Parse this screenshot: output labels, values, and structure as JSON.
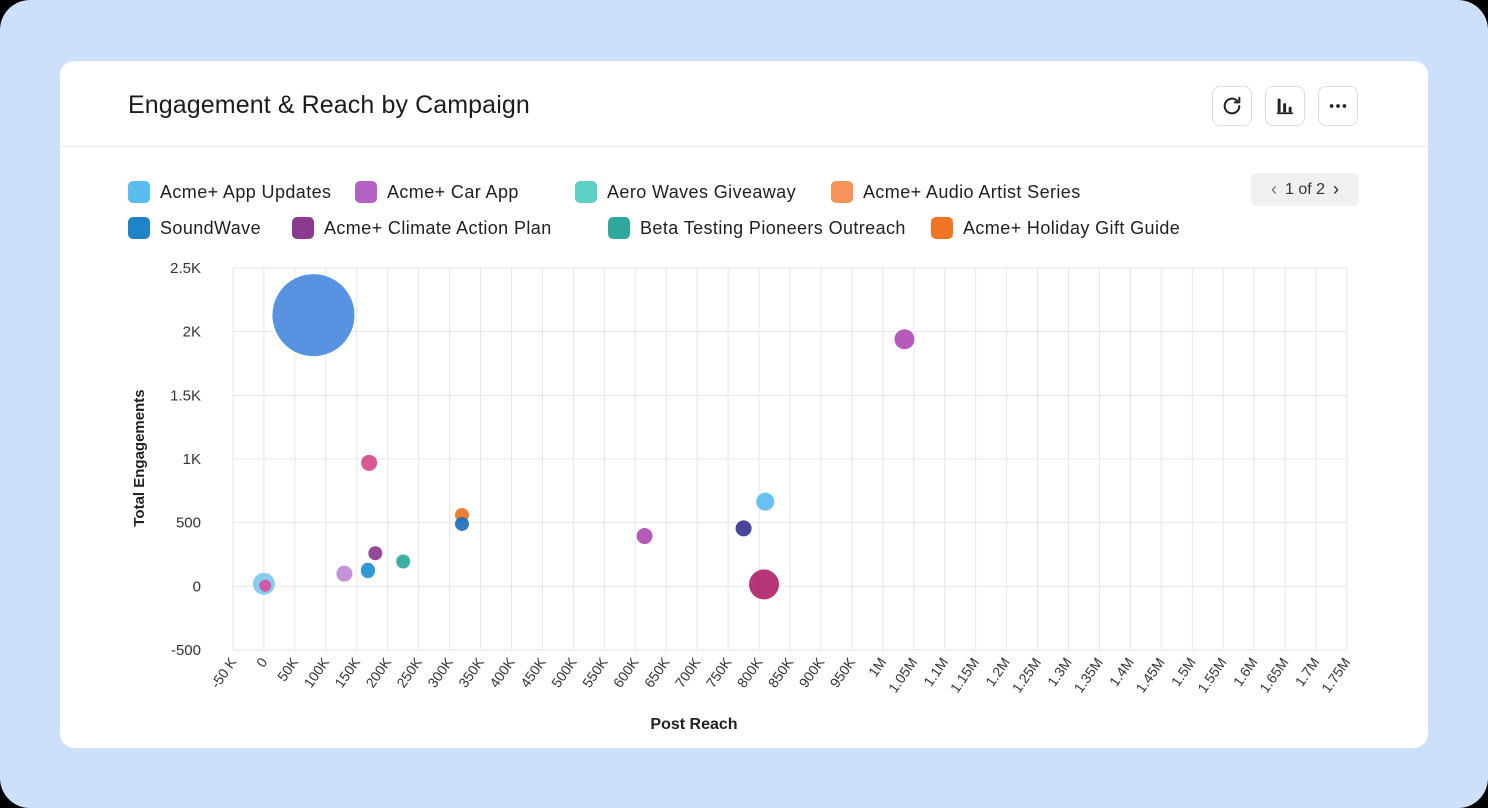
{
  "card": {
    "title": "Engagement & Reach by Campaign",
    "toolbar": {
      "refresh_icon": "refresh-icon",
      "chart_type_icon": "bar-chart-icon",
      "more_icon": "more-horizontal-icon"
    }
  },
  "legend": {
    "items": [
      {
        "label": "Acme+ App Updates",
        "color": "#5bbcf0"
      },
      {
        "label": "Acme+ Car App",
        "color": "#b361c3"
      },
      {
        "label": "Aero Waves Giveaway",
        "color": "#5ecfc7"
      },
      {
        "label": "Acme+ Audio Artist Series",
        "color": "#f6925a"
      },
      {
        "label": "SoundWave",
        "color": "#1f84c7"
      },
      {
        "label": "Acme+ Climate Action Plan",
        "color": "#8a3a91"
      },
      {
        "label": "Beta Testing Pioneers Outreach",
        "color": "#2fa79d"
      },
      {
        "label": "Acme+ Holiday Gift Guide",
        "color": "#ef7424"
      }
    ],
    "pager": {
      "text": "1 of 2",
      "prev_icon": "chevron-left-icon",
      "next_icon": "chevron-right-icon"
    }
  },
  "chart_data": {
    "type": "scatter",
    "title": "Engagement & Reach by Campaign",
    "xlabel": "Post Reach",
    "ylabel": "Total Engagements",
    "xlim": [
      -50000,
      1750000
    ],
    "ylim": [
      -500,
      2500
    ],
    "x_ticks": [
      -50000,
      0,
      50000,
      100000,
      150000,
      200000,
      250000,
      300000,
      350000,
      400000,
      450000,
      500000,
      550000,
      600000,
      650000,
      700000,
      750000,
      800000,
      850000,
      900000,
      950000,
      1000000,
      1050000,
      1100000,
      1150000,
      1200000,
      1250000,
      1300000,
      1350000,
      1400000,
      1450000,
      1500000,
      1550000,
      1600000,
      1650000,
      1700000,
      1750000
    ],
    "x_tick_labels": [
      "-50 K",
      "0",
      "50K",
      "100K",
      "150K",
      "200K",
      "250K",
      "300K",
      "350K",
      "400K",
      "450K",
      "500K",
      "550K",
      "600K",
      "650K",
      "700K",
      "750K",
      "800K",
      "850K",
      "900K",
      "950K",
      "1M",
      "1.05M",
      "1.1M",
      "1.15M",
      "1.2M",
      "1.25M",
      "1.3M",
      "1.35M",
      "1.4M",
      "1.45M",
      "1.5M",
      "1.55M",
      "1.6M",
      "1.65M",
      "1.7M",
      "1.75M"
    ],
    "y_ticks": [
      -500,
      0,
      500,
      1000,
      1500,
      2000,
      2500
    ],
    "y_tick_labels": [
      "-500",
      "0",
      "500",
      "1K",
      "1.5K",
      "2K",
      "2.5K"
    ],
    "grid": true,
    "points": [
      {
        "x": 80000,
        "y": 2130,
        "r": 41,
        "color": "#4a8ae0"
      },
      {
        "x": 1035000,
        "y": 1940,
        "r": 10,
        "color": "#b04cb5"
      },
      {
        "x": 170000,
        "y": 970,
        "r": 8,
        "color": "#d6498a"
      },
      {
        "x": 320000,
        "y": 560,
        "r": 7,
        "color": "#ef7424"
      },
      {
        "x": 320000,
        "y": 490,
        "r": 7,
        "color": "#1f6fbf"
      },
      {
        "x": 810000,
        "y": 665,
        "r": 9,
        "color": "#5bbcf0"
      },
      {
        "x": 775000,
        "y": 455,
        "r": 8,
        "color": "#3a3594"
      },
      {
        "x": 615000,
        "y": 395,
        "r": 8,
        "color": "#b04cb5"
      },
      {
        "x": 180000,
        "y": 260,
        "r": 7,
        "color": "#8a3a91"
      },
      {
        "x": 225000,
        "y": 195,
        "r": 7,
        "color": "#2fa79d"
      },
      {
        "x": 168000,
        "y": 130,
        "r": 7,
        "color": "#1f84c7"
      },
      {
        "x": 168000,
        "y": 118,
        "r": 7,
        "color": "#2f9bd6"
      },
      {
        "x": 130000,
        "y": 100,
        "r": 8,
        "color": "#c08ad6"
      },
      {
        "x": 0,
        "y": 20,
        "r": 11,
        "color": "#7cc9ee"
      },
      {
        "x": 2000,
        "y": 5,
        "r": 6,
        "color": "#d64fa0"
      },
      {
        "x": 808000,
        "y": 15,
        "r": 15,
        "color": "#b0246a"
      }
    ]
  }
}
